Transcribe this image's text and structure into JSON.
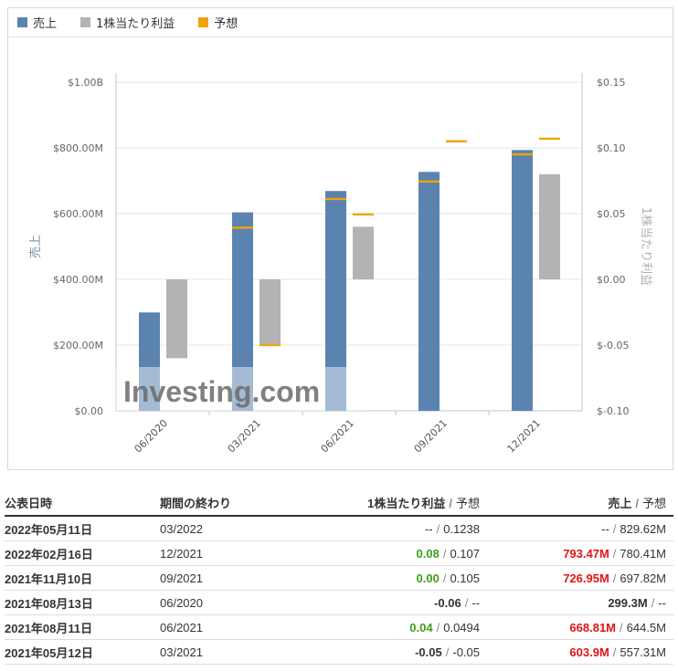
{
  "legend": {
    "revenue": "売上",
    "eps": "1株当たり利益",
    "forecast": "予想"
  },
  "colors": {
    "revenue_bar": "#5b83b0",
    "revenue_light": "#b2c5dc",
    "eps_bar": "#b3b3b3",
    "forecast": "#f0a30a",
    "positive": "#3d9e1a",
    "revenue_beat": "#e01414"
  },
  "watermark": "Investing.com",
  "chart_data": {
    "type": "bar",
    "categories": [
      "06/2020",
      "03/2021",
      "06/2021",
      "09/2021",
      "12/2021"
    ],
    "left_axis": {
      "label": "売上",
      "ticks": [
        "$0.00",
        "$200.00M",
        "$400.00M",
        "$600.00M",
        "$800.00M",
        "$1.00B"
      ],
      "ylim": [
        0,
        1000
      ]
    },
    "right_axis": {
      "label": "1株当たり利益",
      "ticks": [
        "$-0.10",
        "$-0.05",
        "$0.00",
        "$0.05",
        "$0.10",
        "$0.15"
      ],
      "ylim": [
        -0.1,
        0.15
      ]
    },
    "series": [
      {
        "name": "売上",
        "axis": "left",
        "values": [
          299.3,
          603.9,
          668.81,
          726.95,
          793.47
        ],
        "forecast": [
          null,
          557.31,
          644.5,
          697.82,
          780.41
        ]
      },
      {
        "name": "1株当たり利益",
        "axis": "right",
        "values": [
          -0.06,
          -0.05,
          0.04,
          0.0,
          0.08
        ],
        "forecast": [
          null,
          -0.05,
          0.0494,
          0.105,
          0.107
        ]
      }
    ]
  },
  "table": {
    "headers": {
      "date": "公表日時",
      "period": "期間の終わり",
      "eps": "1株当たり利益",
      "eps_forecast": "予想",
      "revenue": "売上",
      "revenue_forecast": "予想"
    },
    "rows": [
      {
        "date": "2022年05月11日",
        "period": "03/2022",
        "eps": "--",
        "eps_cls": "plain",
        "eps_f": "0.1238",
        "rev": "--",
        "rev_cls": "plain",
        "rev_f": "829.62M"
      },
      {
        "date": "2022年02月16日",
        "period": "12/2021",
        "eps": "0.08",
        "eps_cls": "pos",
        "eps_f": "0.107",
        "rev": "793.47M",
        "rev_cls": "red",
        "rev_f": "780.41M"
      },
      {
        "date": "2021年11月10日",
        "period": "09/2021",
        "eps": "0.00",
        "eps_cls": "pos",
        "eps_f": "0.105",
        "rev": "726.95M",
        "rev_cls": "red",
        "rev_f": "697.82M"
      },
      {
        "date": "2021年08月13日",
        "period": "06/2020",
        "eps": "-0.06",
        "eps_cls": "neg",
        "eps_f": "--",
        "rev": "299.3M",
        "rev_cls": "neg",
        "rev_f": "--"
      },
      {
        "date": "2021年08月11日",
        "period": "06/2021",
        "eps": "0.04",
        "eps_cls": "pos",
        "eps_f": "0.0494",
        "rev": "668.81M",
        "rev_cls": "red",
        "rev_f": "644.5M"
      },
      {
        "date": "2021年05月12日",
        "period": "03/2021",
        "eps": "-0.05",
        "eps_cls": "neg",
        "eps_f": "-0.05",
        "rev": "603.9M",
        "rev_cls": "red",
        "rev_f": "557.31M"
      }
    ]
  }
}
